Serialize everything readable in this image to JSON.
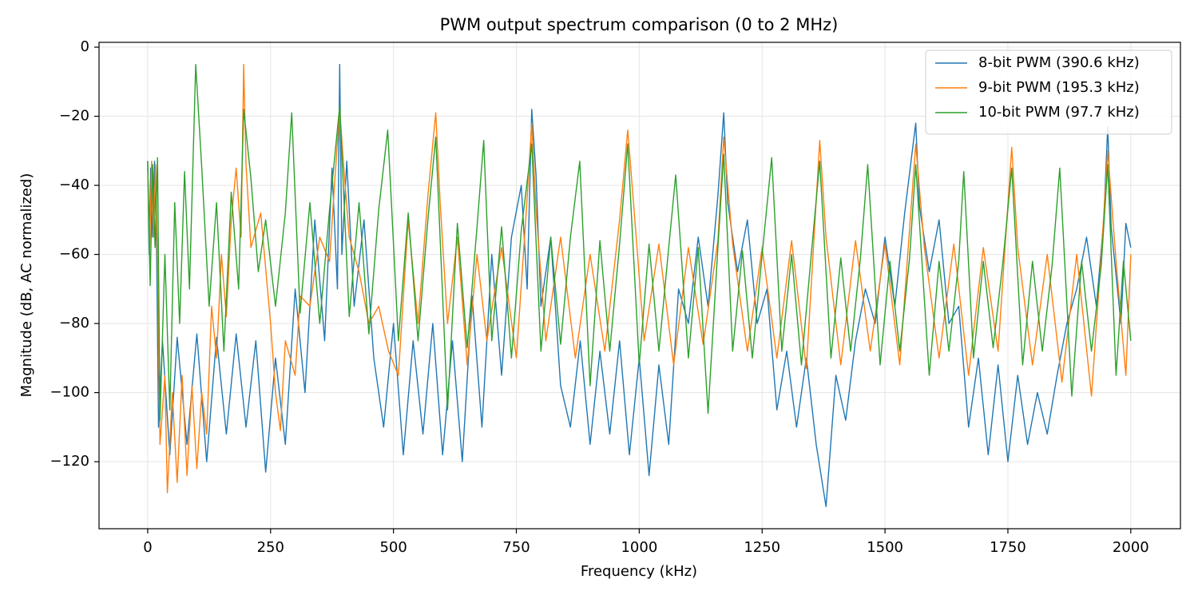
{
  "chart_data": {
    "type": "line",
    "title": "PWM output spectrum comparison (0 to 2 MHz)",
    "x_label": "Frequency (kHz)",
    "y_label": "Magnitude (dB, AC normalized)",
    "xlim": [
      -99,
      2101
    ],
    "ylim": [
      -139.4,
      1.4
    ],
    "xticks": [
      0,
      250,
      500,
      750,
      1000,
      1250,
      1500,
      1750,
      2000
    ],
    "yticks": [
      0,
      {
        "value": -20,
        "label": "−20"
      },
      {
        "value": -40,
        "label": "−40"
      },
      {
        "value": -60,
        "label": "−60"
      },
      {
        "value": -80,
        "label": "−80"
      },
      {
        "value": -100,
        "label": "−100"
      },
      {
        "value": -120,
        "label": "−120"
      }
    ],
    "grid": true,
    "legend": "upper right",
    "series": [
      {
        "name": "8-bit PWM (390.6 kHz)",
        "color": "#1f77b4",
        "x": [
          0,
          3,
          6,
          10,
          14,
          18,
          22,
          30,
          45,
          60,
          80,
          100,
          120,
          140,
          160,
          180,
          200,
          220,
          240,
          260,
          280,
          300,
          320,
          340,
          360,
          375,
          386,
          390.6,
          395,
          405,
          420,
          440,
          460,
          480,
          500,
          520,
          540,
          560,
          580,
          600,
          620,
          640,
          660,
          680,
          700,
          720,
          740,
          760,
          772,
          781.3,
          790,
          800,
          820,
          840,
          860,
          880,
          900,
          920,
          940,
          960,
          980,
          1000,
          1020,
          1040,
          1060,
          1080,
          1100,
          1120,
          1140,
          1160,
          1171.9,
          1180,
          1200,
          1220,
          1240,
          1260,
          1280,
          1300,
          1320,
          1340,
          1360,
          1380,
          1400,
          1420,
          1440,
          1460,
          1480,
          1500,
          1520,
          1540,
          1562.5,
          1570,
          1590,
          1610,
          1630,
          1650,
          1670,
          1690,
          1710,
          1730,
          1750,
          1770,
          1790,
          1810,
          1830,
          1850,
          1870,
          1890,
          1910,
          1930,
          1945,
          1953.1,
          1960,
          1980,
          1990,
          2000
        ],
        "values": [
          -33,
          -60,
          -35,
          -55,
          -33,
          -57,
          -110,
          -85,
          -118,
          -84,
          -115,
          -83,
          -120,
          -84,
          -112,
          -83,
          -110,
          -85,
          -123,
          -90,
          -115,
          -70,
          -100,
          -50,
          -85,
          -35,
          -70,
          -5,
          -60,
          -33,
          -75,
          -50,
          -90,
          -110,
          -80,
          -118,
          -85,
          -112,
          -80,
          -118,
          -85,
          -120,
          -72,
          -110,
          -60,
          -95,
          -55,
          -40,
          -70,
          -18,
          -37,
          -75,
          -55,
          -98,
          -110,
          -85,
          -115,
          -88,
          -112,
          -85,
          -118,
          -90,
          -124,
          -92,
          -115,
          -70,
          -80,
          -55,
          -75,
          -43,
          -19,
          -45,
          -65,
          -50,
          -80,
          -70,
          -105,
          -88,
          -110,
          -90,
          -115,
          -133,
          -95,
          -108,
          -85,
          -70,
          -80,
          -55,
          -75,
          -48,
          -22,
          -46,
          -65,
          -50,
          -80,
          -75,
          -110,
          -90,
          -118,
          -92,
          -120,
          -95,
          -115,
          -100,
          -112,
          -95,
          -80,
          -70,
          -55,
          -75,
          -50,
          -23,
          -52,
          -80,
          -51,
          -58
        ]
      },
      {
        "name": "9-bit PWM (195.3 kHz)",
        "color": "#ff7f0e",
        "x": [
          0,
          4,
          8,
          12,
          16,
          20,
          25,
          35,
          40,
          50,
          60,
          70,
          80,
          90,
          100,
          110,
          120,
          130,
          140,
          150,
          160,
          170,
          180,
          190,
          195.3,
          200,
          210,
          230,
          250,
          260,
          270,
          280,
          300,
          310,
          330,
          350,
          370,
          380,
          390.6,
          400,
          410,
          430,
          450,
          470,
          490,
          510,
          530,
          550,
          570,
          586,
          595,
          610,
          630,
          650,
          670,
          690,
          720,
          750,
          770,
          781.3,
          790,
          810,
          840,
          870,
          900,
          930,
          960,
          976.6,
          990,
          1010,
          1040,
          1070,
          1100,
          1130,
          1160,
          1171.9,
          1190,
          1220,
          1250,
          1280,
          1310,
          1340,
          1367.2,
          1380,
          1410,
          1440,
          1470,
          1500,
          1530,
          1562.5,
          1580,
          1610,
          1640,
          1670,
          1700,
          1730,
          1757.8,
          1770,
          1800,
          1830,
          1860,
          1890,
          1920,
          1940,
          1953.1,
          1970,
          1990,
          2000
        ],
        "values": [
          -35,
          -58,
          -33,
          -55,
          -34,
          -62,
          -115,
          -95,
          -129,
          -100,
          -126,
          -95,
          -124,
          -98,
          -122,
          -100,
          -112,
          -75,
          -90,
          -60,
          -78,
          -50,
          -35,
          -55,
          -5,
          -34,
          -58,
          -48,
          -80,
          -100,
          -111,
          -85,
          -95,
          -72,
          -75,
          -55,
          -62,
          -40,
          -18,
          -37,
          -55,
          -65,
          -80,
          -75,
          -88,
          -95,
          -50,
          -80,
          -43,
          -19,
          -45,
          -80,
          -55,
          -92,
          -60,
          -85,
          -58,
          -90,
          -48,
          -22,
          -47,
          -85,
          -55,
          -90,
          -60,
          -88,
          -50,
          -24,
          -48,
          -85,
          -57,
          -92,
          -58,
          -86,
          -56,
          -26,
          -57,
          -88,
          -58,
          -90,
          -56,
          -93,
          -27,
          -55,
          -92,
          -56,
          -88,
          -57,
          -92,
          -28,
          -58,
          -90,
          -57,
          -95,
          -58,
          -88,
          -29,
          -58,
          -92,
          -60,
          -97,
          -60,
          -101,
          -60,
          -30,
          -62,
          -95,
          -60
        ]
      },
      {
        "name": "10-bit PWM (97.7 kHz)",
        "color": "#2ca02c",
        "x": [
          0,
          5,
          10,
          15,
          20,
          25,
          35,
          45,
          55,
          65,
          75,
          85,
          97.7,
          110,
          125,
          140,
          155,
          170,
          185,
          195.3,
          210,
          225,
          240,
          260,
          280,
          293,
          310,
          330,
          350,
          370,
          390.6,
          410,
          430,
          450,
          470,
          488.3,
          510,
          530,
          550,
          570,
          586,
          610,
          630,
          650,
          670,
          683.6,
          700,
          720,
          740,
          760,
          781.3,
          800,
          820,
          840,
          860,
          879,
          900,
          920,
          940,
          960,
          976.6,
          1000,
          1020,
          1040,
          1060,
          1074.2,
          1100,
          1120,
          1140,
          1160,
          1171.9,
          1190,
          1210,
          1230,
          1250,
          1269.5,
          1290,
          1310,
          1330,
          1350,
          1367.2,
          1390,
          1410,
          1430,
          1450,
          1464.8,
          1490,
          1510,
          1530,
          1550,
          1562.5,
          1590,
          1610,
          1630,
          1650,
          1660.2,
          1680,
          1700,
          1720,
          1740,
          1757.8,
          1780,
          1800,
          1820,
          1840,
          1855.5,
          1880,
          1900,
          1920,
          1940,
          1953.1,
          1970,
          1985,
          2000
        ],
        "values": [
          -33,
          -69,
          -34,
          -58,
          -32,
          -108,
          -60,
          -105,
          -45,
          -80,
          -36,
          -70,
          -5,
          -35,
          -75,
          -45,
          -88,
          -42,
          -70,
          -18,
          -38,
          -65,
          -50,
          -75,
          -48,
          -19,
          -77,
          -45,
          -80,
          -47,
          -17,
          -78,
          -45,
          -83,
          -47,
          -24,
          -85,
          -48,
          -85,
          -50,
          -26,
          -105,
          -51,
          -87,
          -52,
          -27,
          -85,
          -52,
          -90,
          -53,
          -28,
          -88,
          -55,
          -86,
          -55,
          -33,
          -98,
          -56,
          -88,
          -57,
          -28,
          -92,
          -57,
          -88,
          -58,
          -37,
          -90,
          -58,
          -106,
          -58,
          -31,
          -88,
          -59,
          -90,
          -60,
          -32,
          -88,
          -60,
          -92,
          -60,
          -33,
          -90,
          -61,
          -88,
          -61,
          -34,
          -92,
          -62,
          -88,
          -61,
          -34,
          -95,
          -62,
          -88,
          -62,
          -36,
          -90,
          -62,
          -87,
          -62,
          -35,
          -92,
          -62,
          -88,
          -63,
          -35,
          -101,
          -62,
          -88,
          -63,
          -34,
          -95,
          -62,
          -85
        ]
      }
    ]
  }
}
